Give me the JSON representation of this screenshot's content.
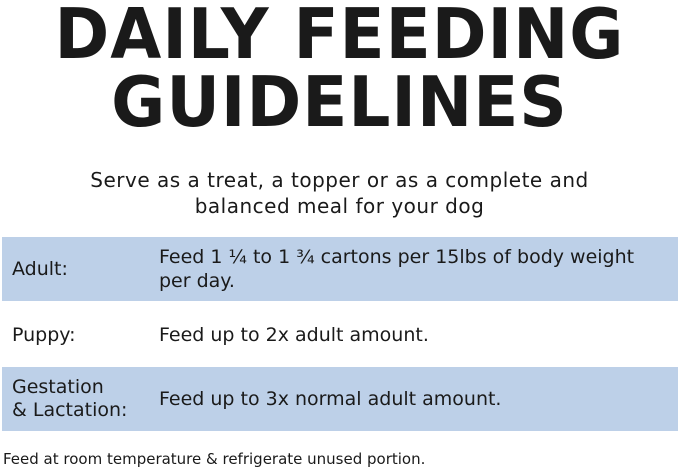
{
  "header": {
    "title_lines": [
      "DAILY FEEDING",
      "GUIDELINES"
    ],
    "subtitle_lines": [
      "Serve as a treat, a topper or as a complete and",
      "balanced meal for your dog"
    ]
  },
  "table": {
    "rows": [
      {
        "label_lines": [
          "Adult:"
        ],
        "text_lines": [
          "Feed 1 ¼ to 1 ¾ cartons per 15lbs of body weight",
          "per day."
        ],
        "shaded": true
      },
      {
        "label_lines": [
          "Puppy:"
        ],
        "text_lines": [
          "Feed up to 2x adult amount."
        ],
        "shaded": false
      },
      {
        "label_lines": [
          "Gestation",
          "& Lactation:"
        ],
        "text_lines": [
          "Feed up to 3x normal adult amount."
        ],
        "shaded": true
      }
    ]
  },
  "footer": {
    "note": "Feed at room temperature & refrigerate unused portion."
  }
}
